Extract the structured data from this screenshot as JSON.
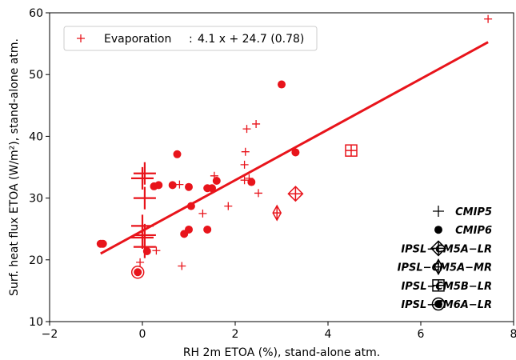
{
  "chart_data": {
    "type": "scatter",
    "xlabel": "RH 2m ETOA (%), stand-alone atm.",
    "ylabel": "Surf. heat flux ETOA (W/m²), stand-alone atm.",
    "xlim": [
      -2,
      8
    ],
    "ylim": [
      10,
      60
    ],
    "xticks": [
      -2,
      0,
      2,
      4,
      6,
      8
    ],
    "yticks": [
      10,
      20,
      30,
      40,
      50,
      60
    ],
    "grid": false,
    "colors": {
      "data": "#e8141b",
      "axis": "#000000"
    },
    "legend_position": "top-left",
    "fit_label": "Evaporation",
    "fit_formula": "4.1 x + 24.7 (0.78)",
    "fit": {
      "slope": 4.1,
      "intercept": 24.7,
      "x_range": [
        -0.9,
        7.45
      ]
    },
    "series": [
      {
        "name": "CMIP5",
        "marker": "plus",
        "x": [
          7.45,
          2.25,
          2.45,
          2.22,
          2.2,
          1.55,
          2.3,
          2.2,
          0.8,
          2.5,
          1.85,
          0.3,
          0.85,
          -0.05,
          1.3
        ],
        "y": [
          59.0,
          41.2,
          42.0,
          37.5,
          35.4,
          33.6,
          33.2,
          32.9,
          32.2,
          30.8,
          28.7,
          21.5,
          19.0,
          19.6,
          27.5
        ]
      },
      {
        "name": "CMIP6",
        "marker": "circle",
        "x": [
          3.0,
          0.75,
          3.3,
          0.35,
          0.25,
          0.65,
          1.0,
          1.4,
          1.5,
          1.6,
          2.35,
          1.05,
          1.0,
          0.9,
          1.4,
          -0.85,
          -0.9,
          0.1
        ],
        "y": [
          48.4,
          37.1,
          37.4,
          32.1,
          31.9,
          32.1,
          31.8,
          31.6,
          31.6,
          32.8,
          32.6,
          28.7,
          24.9,
          24.2,
          24.9,
          22.6,
          22.6,
          21.4
        ]
      },
      {
        "name": "IPSL-CM5A-LR",
        "marker": "diamond-plus",
        "x": [
          3.3
        ],
        "y": [
          30.7
        ]
      },
      {
        "name": "IPSL-CM5A-MR",
        "marker": "thin-diamond-plus",
        "x": [
          2.9
        ],
        "y": [
          27.6
        ]
      },
      {
        "name": "IPSL-CM5B-LR",
        "marker": "square-plus",
        "x": [
          4.5
        ],
        "y": [
          37.7
        ]
      },
      {
        "name": "IPSL-CM6A-LR",
        "marker": "ring",
        "x": [
          -0.1
        ],
        "y": [
          18.0
        ]
      }
    ],
    "large_plus_markers": {
      "x": [
        0.05,
        0.0,
        0.05,
        0.0,
        0.05,
        0.0,
        0.05
      ],
      "y": [
        34.0,
        33.2,
        30.0,
        25.5,
        24.0,
        23.6,
        22.1
      ]
    },
    "model_legend": [
      {
        "label": "CMIP5",
        "marker": "plus"
      },
      {
        "label": "CMIP6",
        "marker": "circle"
      },
      {
        "label": "IPSL−CM5A−LR",
        "marker": "diamond-plus"
      },
      {
        "label": "IPSL−CM5A−MR",
        "marker": "thin-diamond-plus"
      },
      {
        "label": "IPSL−CM5B−LR",
        "marker": "square-plus"
      },
      {
        "label": "IPSL−CM6A−LR",
        "marker": "ring"
      }
    ]
  }
}
